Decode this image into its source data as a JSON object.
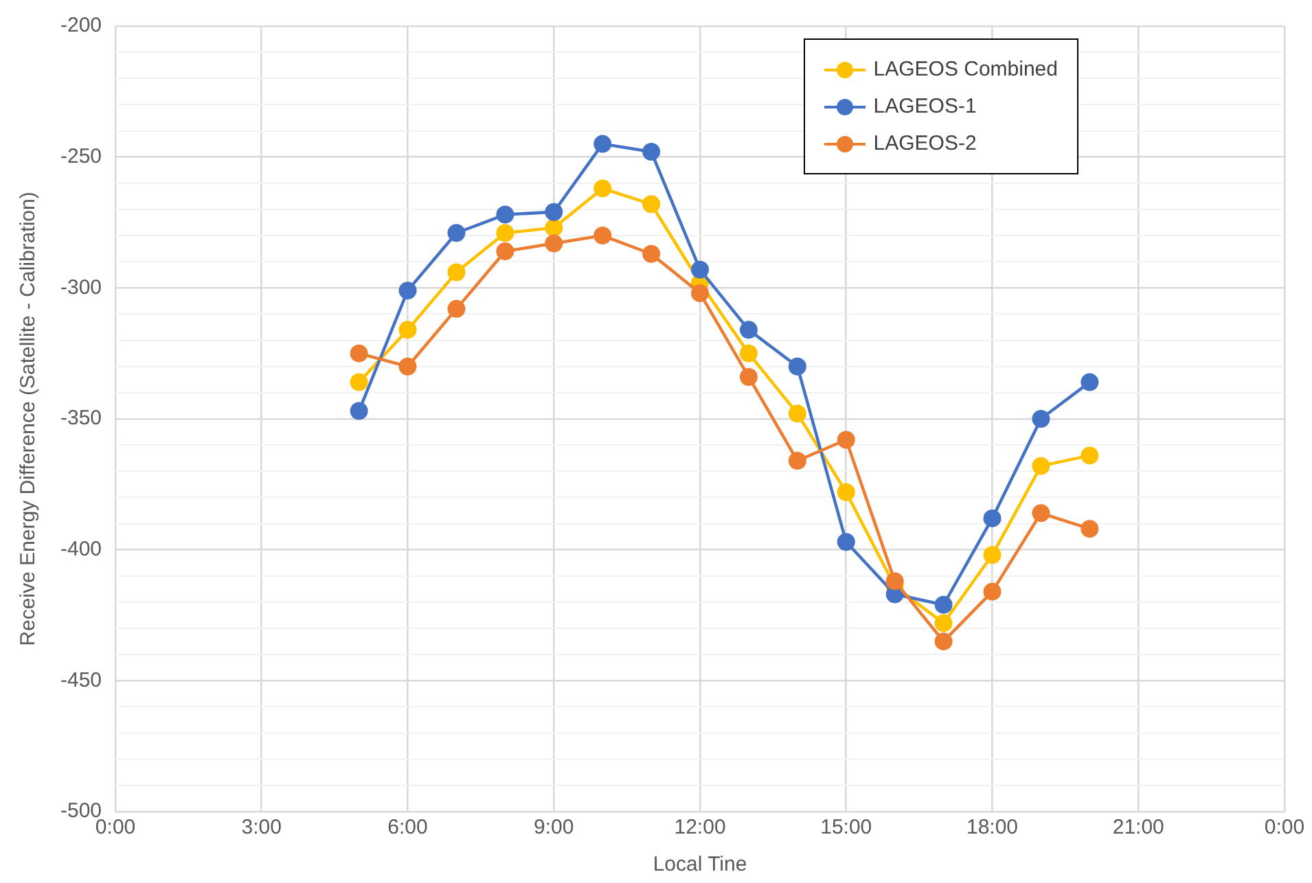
{
  "chart_data": {
    "type": "line",
    "xlabel": "Local Tine",
    "ylabel": "Receive Energy Difference (Satellite - Calibration)",
    "x": [
      5,
      6,
      7,
      8,
      9,
      10,
      11,
      12,
      13,
      14,
      15,
      16,
      17,
      18,
      19,
      20
    ],
    "series": [
      {
        "name": "LAGEOS Combined",
        "color": "#ffc000",
        "values": [
          -336,
          -316,
          -294,
          -279,
          -277,
          -262,
          -268,
          -298,
          -325,
          -348,
          -378,
          -414,
          -428,
          -402,
          -368,
          -364
        ]
      },
      {
        "name": "LAGEOS-1",
        "color": "#4472c4",
        "values": [
          -347,
          -301,
          -279,
          -272,
          -271,
          -245,
          -248,
          -293,
          -316,
          -330,
          -397,
          -417,
          -421,
          -388,
          -350,
          -336
        ]
      },
      {
        "name": "LAGEOS-2",
        "color": "#ed7d31",
        "values": [
          -325,
          -330,
          -308,
          -286,
          -283,
          -280,
          -287,
          -302,
          -334,
          -366,
          -358,
          -412,
          -435,
          -416,
          -386,
          -392
        ]
      }
    ],
    "xlim": [
      0,
      24
    ],
    "xticks": [
      {
        "value": 0,
        "label": "0:00"
      },
      {
        "value": 3,
        "label": "3:00"
      },
      {
        "value": 6,
        "label": "6:00"
      },
      {
        "value": 9,
        "label": "9:00"
      },
      {
        "value": 12,
        "label": "12:00"
      },
      {
        "value": 15,
        "label": "15:00"
      },
      {
        "value": 18,
        "label": "18:00"
      },
      {
        "value": 21,
        "label": "21:00"
      },
      {
        "value": 24,
        "label": "0:00"
      }
    ],
    "ylim": [
      -500,
      -200
    ],
    "yticks": [
      -500,
      {
        "value": -490,
        "label": null
      },
      {
        "value": -480,
        "label": null
      },
      {
        "value": -470,
        "label": null
      },
      {
        "value": -460,
        "label": null
      },
      -450,
      {
        "value": -440,
        "label": null
      },
      {
        "value": -430,
        "label": null
      },
      {
        "value": -420,
        "label": null
      },
      {
        "value": -410,
        "label": null
      },
      -400,
      {
        "value": -390,
        "label": null
      },
      {
        "value": -380,
        "label": null
      },
      {
        "value": -370,
        "label": null
      },
      {
        "value": -360,
        "label": null
      },
      -350,
      {
        "value": -340,
        "label": null
      },
      {
        "value": -330,
        "label": null
      },
      {
        "value": -320,
        "label": null
      },
      {
        "value": -310,
        "label": null
      },
      -300,
      {
        "value": -290,
        "label": null
      },
      {
        "value": -280,
        "label": null
      },
      {
        "value": -270,
        "label": null
      },
      {
        "value": -260,
        "label": null
      },
      -250,
      {
        "value": -240,
        "label": null
      },
      {
        "value": -230,
        "label": null
      },
      {
        "value": -220,
        "label": null
      },
      {
        "value": -210,
        "label": null
      },
      -200
    ],
    "grid": true,
    "legend": "top right",
    "marker": "circle",
    "line_style": "solid"
  }
}
